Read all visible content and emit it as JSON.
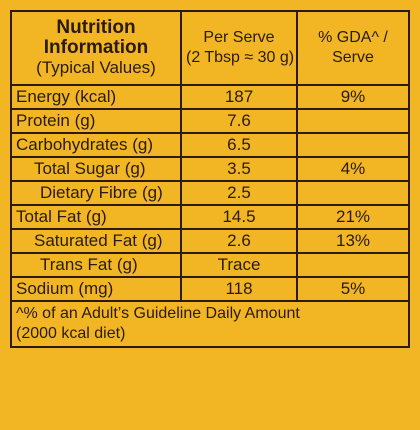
{
  "header": {
    "title_line1": "Nutrition",
    "title_line2": "Information",
    "subtitle": "(Typical Values)",
    "col2_line1": "Per Serve",
    "col2_line2": "(2 Tbsp ≈ 30 g)",
    "col3_line1": "% GDA^ /",
    "col3_line2": "Serve"
  },
  "rows": [
    {
      "name": "Energy (kcal)",
      "per_serve": "187",
      "gda": "9%"
    },
    {
      "name": "Protein (g)",
      "per_serve": "7.6",
      "gda": ""
    },
    {
      "name": "Carbohydrates (g)",
      "per_serve": "6.5",
      "gda": ""
    },
    {
      "name": "Total Sugar (g)",
      "per_serve": "3.5",
      "gda": "4%"
    },
    {
      "name": "Dietary Fibre (g)",
      "per_serve": "2.5",
      "gda": ""
    },
    {
      "name": "Total Fat (g)",
      "per_serve": "14.5",
      "gda": "21%"
    },
    {
      "name": "Saturated Fat (g)",
      "per_serve": "2.6",
      "gda": "13%"
    },
    {
      "name": "Trans Fat (g)",
      "per_serve": "Trace",
      "gda": ""
    },
    {
      "name": "Sodium (mg)",
      "per_serve": "118",
      "gda": "5%"
    }
  ],
  "footnote_line1": "^% of an Adult’s Guideline Daily Amount",
  "footnote_line2": "(2000 kcal diet)",
  "colors": {
    "background": "#f2b624",
    "ink": "#2a1a0f"
  }
}
